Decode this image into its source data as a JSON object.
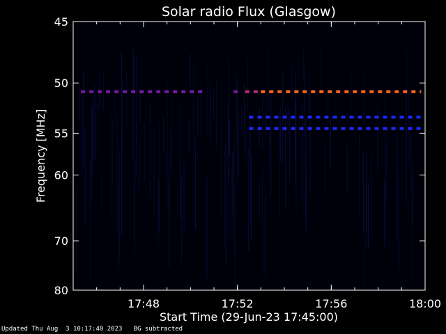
{
  "chart_data": {
    "type": "heatmap",
    "title": "Solar radio Flux (Glasgow)",
    "xlabel": "Start Time (29-Jun-23 17:45:00)",
    "ylabel": "Frequency [MHz]",
    "x_start": "17:45",
    "x_end": "18:00",
    "x_ticks": [
      "17:48",
      "17:52",
      "17:56",
      "18:00"
    ],
    "y_ticks": [
      45,
      50,
      55,
      60,
      70,
      80
    ],
    "ylim": [
      45,
      80
    ],
    "y_scale": "reciprocal",
    "y_inverted": true,
    "grid": false,
    "background_color": "#000000",
    "bands": [
      {
        "frequency_mhz": 50.8,
        "start": "17:45:20",
        "end": "17:50:30",
        "color": "#7a1aa8"
      },
      {
        "frequency_mhz": 50.8,
        "start": "17:51:50",
        "end": "17:52:10",
        "color": "#7a1aa8"
      },
      {
        "frequency_mhz": 50.8,
        "start": "17:52:20",
        "end": "17:53:00",
        "color": "#b0307a"
      },
      {
        "frequency_mhz": 50.8,
        "start": "17:53:00",
        "end": "17:59:50",
        "color": "#ff6a1a"
      },
      {
        "frequency_mhz": 53.3,
        "start": "17:52:30",
        "end": "17:59:50",
        "color": "#1a2aff"
      },
      {
        "frequency_mhz": 54.5,
        "start": "17:52:30",
        "end": "17:59:50",
        "color": "#1a2aff"
      }
    ]
  },
  "footer": {
    "updated": "Updated Thu Aug  3 10:17:40 2023",
    "note": "BG subtracted"
  }
}
